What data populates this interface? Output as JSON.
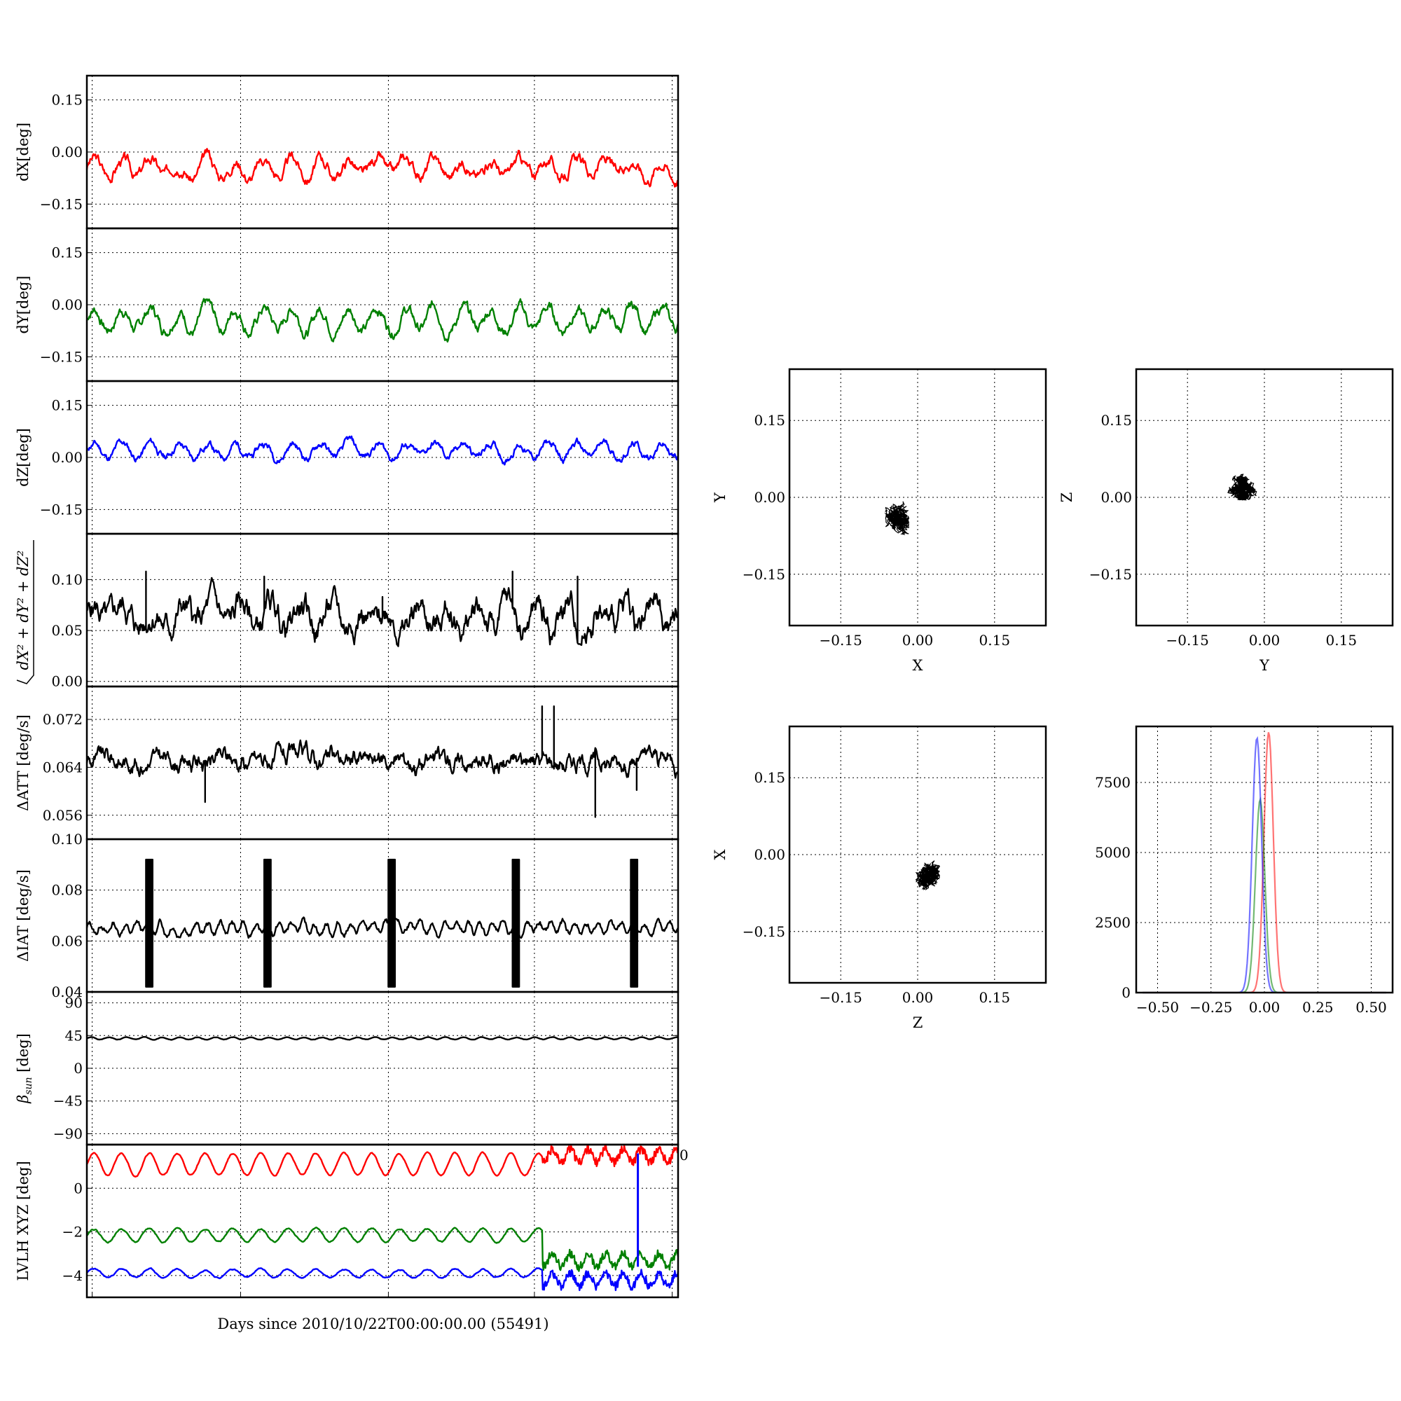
{
  "colors": {
    "x": "#ff0000",
    "y": "#008000",
    "z": "#0000ff",
    "k": "#000000"
  },
  "chart_data": [
    {
      "type": "line",
      "id": "dx",
      "ylabel": "dX[deg]",
      "ylim": [
        -0.22,
        0.22
      ],
      "yticks": [
        -0.15,
        0.0,
        0.15
      ],
      "ytick_labels": [
        "−0.15",
        "0.00",
        "0.15"
      ],
      "color": "x",
      "series": [
        {
          "base": -0.045,
          "amp": 0.025,
          "period": 0.048,
          "noise": 0.01,
          "seed": 3
        }
      ]
    },
    {
      "type": "line",
      "id": "dy",
      "ylabel": "dY[deg]",
      "ylim": [
        -0.22,
        0.22
      ],
      "yticks": [
        -0.15,
        0.0,
        0.15
      ],
      "ytick_labels": [
        "−0.15",
        "0.00",
        "0.15"
      ],
      "color": "y",
      "series": [
        {
          "base": -0.04,
          "amp": 0.03,
          "period": 0.048,
          "noise": 0.01,
          "seed": 7
        }
      ]
    },
    {
      "type": "line",
      "id": "dz",
      "ylabel": "dZ[deg]",
      "ylim": [
        -0.22,
        0.22
      ],
      "yticks": [
        -0.15,
        0.0,
        0.15
      ],
      "ytick_labels": [
        "−0.15",
        "0.00",
        "0.15"
      ],
      "color": "z",
      "series": [
        {
          "base": 0.02,
          "amp": 0.02,
          "period": 0.048,
          "noise": 0.007,
          "seed": 11
        }
      ]
    },
    {
      "type": "line",
      "id": "tot",
      "ylabel_text": "dX² + dY² + dZ²",
      "ylim": [
        -0.005,
        0.145
      ],
      "yticks": [
        0.0,
        0.05,
        0.1
      ],
      "ytick_labels": [
        "0.00",
        "0.05",
        "0.10"
      ],
      "color": "k",
      "series": [
        {
          "base": 0.063,
          "amp": 0.01,
          "period": 0.05,
          "noise": 0.008,
          "seed": 5,
          "spikes": [
            [
              0.1,
              0.045
            ],
            [
              0.3,
              0.04
            ],
            [
              0.72,
              0.045
            ],
            [
              0.83,
              0.04
            ],
            [
              0.5,
              0.02
            ]
          ]
        }
      ]
    },
    {
      "type": "line",
      "id": "att",
      "ylabel": "ΔATT [deg/s]",
      "ylim": [
        0.052,
        0.0775
      ],
      "yticks": [
        0.056,
        0.064,
        0.072
      ],
      "ytick_labels": [
        "0.056",
        "0.064",
        "0.072"
      ],
      "color": "k",
      "series": [
        {
          "base": 0.0652,
          "amp": 0.0003,
          "period": 0.01,
          "noise": 0.0009,
          "seed": 9,
          "spikes": [
            [
              0.2,
              -0.007
            ],
            [
              0.77,
              0.009
            ],
            [
              0.79,
              0.009
            ],
            [
              0.86,
              -0.0095
            ],
            [
              0.93,
              -0.005
            ]
          ]
        }
      ]
    },
    {
      "type": "line",
      "id": "iat",
      "ylabel": "ΔIAT [deg/s]",
      "ylim": [
        0.04,
        0.1
      ],
      "yticks": [
        0.04,
        0.06,
        0.08,
        0.1
      ],
      "ytick_labels": [
        "0.04",
        "0.06",
        "0.08",
        "0.10"
      ],
      "color": "k",
      "series": [
        {
          "base": 0.065,
          "amp": 0.002,
          "period": 0.02,
          "noise": 0.0008,
          "seed": 13,
          "bursts": [
            0.1,
            0.3,
            0.51,
            0.72,
            0.92
          ]
        }
      ]
    },
    {
      "type": "line",
      "id": "beta",
      "ylabel_text": "β",
      "ylabel_sub": "sun",
      "ylabel_unit": " [deg]",
      "ylim": [
        -105,
        105
      ],
      "yticks": [
        -90,
        -45,
        0,
        45,
        90
      ],
      "ytick_labels": [
        "−90",
        "−45",
        "0",
        "45",
        "90"
      ],
      "color": "k",
      "series": [
        {
          "base": 41,
          "amp": 1.5,
          "period": 0.03,
          "noise": 0.2,
          "seed": 1
        }
      ]
    },
    {
      "type": "line",
      "id": "lvlh",
      "ylabel": "LVLH XYZ [deg]",
      "ylim": [
        -5,
        2
      ],
      "yticks": [
        -4,
        -2,
        0
      ],
      "ytick_labels": [
        "−4",
        "−2",
        "0"
      ],
      "extra_tick_label": "0",
      "series": [
        {
          "color": "x",
          "base": 1.1,
          "amp": 0.5,
          "period": 0.047,
          "noise": 0.02,
          "seed": 21,
          "break": 0.77,
          "after": 1.5
        },
        {
          "color": "y",
          "base": -2.15,
          "amp": 0.3,
          "period": 0.047,
          "noise": 0.02,
          "seed": 22,
          "break": 0.77,
          "after": -3.3
        },
        {
          "color": "z",
          "base": -3.9,
          "amp": 0.2,
          "period": 0.047,
          "noise": 0.02,
          "seed": 23,
          "break": 0.77,
          "after": -4.2
        }
      ]
    },
    {
      "type": "scatter",
      "id": "xy",
      "xlabel": "X",
      "ylabel": "Y",
      "center": [
        -0.04,
        -0.04
      ],
      "spread": [
        0.045,
        0.065
      ],
      "n": 900,
      "seed": 31
    },
    {
      "type": "scatter",
      "id": "yz",
      "xlabel": "Y",
      "ylabel": "Z",
      "center": [
        -0.04,
        0.02
      ],
      "spread": [
        0.075,
        0.05
      ],
      "n": 900,
      "seed": 32
    },
    {
      "type": "scatter",
      "id": "zx",
      "xlabel": "Z",
      "ylabel": "X",
      "center": [
        0.02,
        -0.04
      ],
      "spread": [
        0.045,
        0.06
      ],
      "n": 900,
      "seed": 33
    },
    {
      "type": "histogram",
      "id": "hist",
      "xlim": [
        -0.6,
        0.6
      ],
      "xticks": [
        -0.5,
        -0.25,
        0.0,
        0.25,
        0.5
      ],
      "xtick_labels": [
        "−0.50",
        "−0.25",
        "0.00",
        "0.25",
        "0.50"
      ],
      "ylim": [
        0,
        9500
      ],
      "yticks": [
        0,
        2500,
        5000,
        7500
      ],
      "ytick_labels": [
        "0",
        "2500",
        "5000",
        "7500"
      ],
      "series": [
        {
          "color": "x",
          "center": 0.02,
          "peak": 9300
        },
        {
          "color": "y",
          "center": -0.02,
          "peak": 6900
        },
        {
          "color": "z",
          "center": -0.035,
          "peak": 9100
        }
      ]
    }
  ],
  "scatter_ticks": [
    -0.15,
    0.0,
    0.15
  ],
  "scatter_tick_labels": [
    "−0.15",
    "0.00",
    "0.15"
  ],
  "scatter_lim": [
    -0.25,
    0.25
  ],
  "xlabel_bottom": "Days since 2010/10/22T00:00:00.00 (55491)"
}
